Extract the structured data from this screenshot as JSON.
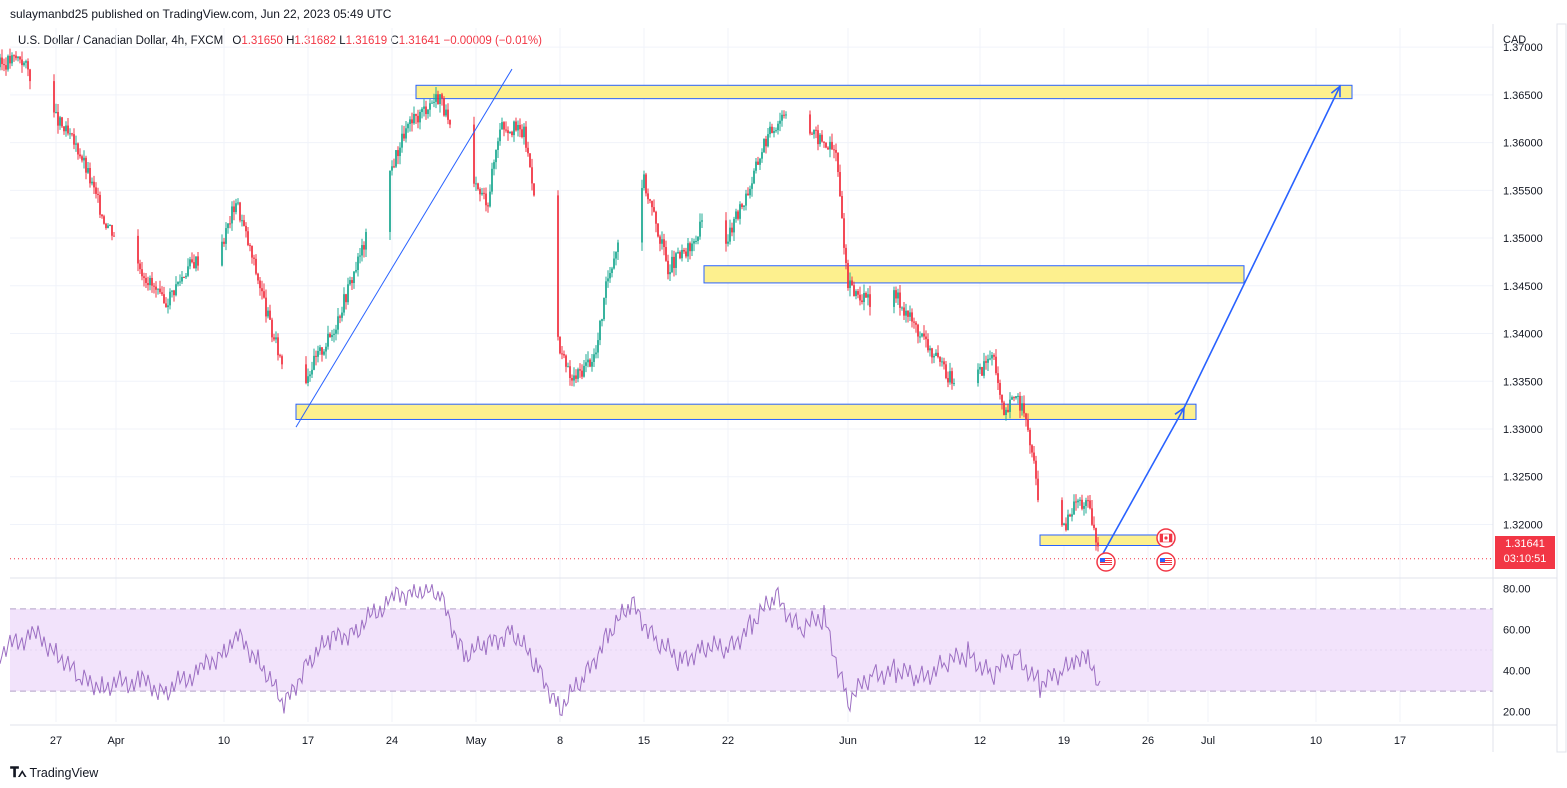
{
  "header": {
    "published": "sulaymanbd25 published on TradingView.com, Jun 22, 2023 05:49 UTC"
  },
  "legend": {
    "symbol": "U.S. Dollar / Canadian Dollar, 4h, FXCM",
    "o_label": "O",
    "o": "1.31650",
    "h_label": "H",
    "h": "1.31682",
    "l_label": "L",
    "l": "1.31619",
    "c_label": "C",
    "c": "1.31641",
    "change": "−0.00009 (−0.01%)"
  },
  "price_axis": {
    "currency": "CAD",
    "labels": [
      "1.37000",
      "1.36500",
      "1.36000",
      "1.35500",
      "1.35000",
      "1.34500",
      "1.34000",
      "1.33500",
      "1.33000",
      "1.32500",
      "1.32000"
    ],
    "current_price": "1.31641",
    "countdown": "03:10:51"
  },
  "rsi_axis": {
    "labels": [
      "80.00",
      "60.00",
      "40.00",
      "20.00"
    ]
  },
  "time_axis": {
    "labels": [
      "27",
      "Apr",
      "10",
      "17",
      "24",
      "May",
      "8",
      "15",
      "22",
      "Jun",
      "12",
      "19",
      "26",
      "Jul",
      "10",
      "17"
    ]
  },
  "brand": {
    "name": "TradingView"
  },
  "colors": {
    "up": "#22ab94",
    "down": "#f23645",
    "zone_fill": "#fdf08e",
    "zone_stroke": "#2962ff",
    "arrow": "#2962ff",
    "rsi": "#9c6ec2",
    "rsi_band": "#f2e3fb"
  },
  "chart_data": {
    "type": "candlestick",
    "instrument": "U.S. Dollar / Canadian Dollar",
    "timeframe": "4h",
    "ylim": [
      1.3145,
      1.372
    ],
    "close_path": [
      [
        "Mar 22",
        1.368
      ],
      [
        "Mar 24",
        1.369
      ],
      [
        "Mar 27",
        1.3625
      ],
      [
        "Mar 29",
        1.359
      ],
      [
        "Mar 31",
        1.352
      ],
      [
        "Apr 3",
        1.347
      ],
      [
        "Apr 5",
        1.343
      ],
      [
        "Apr 7",
        1.347
      ],
      [
        "Apr 10",
        1.35
      ],
      [
        "Apr 11",
        1.354
      ],
      [
        "Apr 13",
        1.345
      ],
      [
        "Apr 14",
        1.34
      ],
      [
        "Apr 16",
        1.333
      ],
      [
        "Apr 17",
        1.336
      ],
      [
        "Apr 19",
        1.34
      ],
      [
        "Apr 21",
        1.347
      ],
      [
        "Apr 23",
        1.354
      ],
      [
        "Apr 25",
        1.361
      ],
      [
        "Apr 27",
        1.364
      ],
      [
        "Apr 28",
        1.365
      ],
      [
        "Apr 30",
        1.356
      ],
      [
        "May 2",
        1.354
      ],
      [
        "May 3",
        1.362
      ],
      [
        "May 5",
        1.361
      ],
      [
        "May 6",
        1.354
      ],
      [
        "May 8",
        1.338
      ],
      [
        "May 9",
        1.335
      ],
      [
        "May 11",
        1.338
      ],
      [
        "May 12",
        1.346
      ],
      [
        "May 14",
        1.355
      ],
      [
        "May 15",
        1.356
      ],
      [
        "May 17",
        1.347
      ],
      [
        "May 19",
        1.349
      ],
      [
        "May 20",
        1.352
      ],
      [
        "May 22",
        1.35
      ],
      [
        "May 24",
        1.356
      ],
      [
        "May 25",
        1.36
      ],
      [
        "May 27",
        1.364
      ],
      [
        "May 29",
        1.361
      ],
      [
        "May 31",
        1.359
      ],
      [
        "Jun 1",
        1.345
      ],
      [
        "Jun 3",
        1.343
      ],
      [
        "Jun 5",
        1.344
      ],
      [
        "Jun 7",
        1.34
      ],
      [
        "Jun 9",
        1.336
      ],
      [
        "Jun 10",
        1.335
      ],
      [
        "Jun 12",
        1.336
      ],
      [
        "Jun 13",
        1.338
      ],
      [
        "Jun 14",
        1.331
      ],
      [
        "Jun 15",
        1.334
      ],
      [
        "Jun 16",
        1.33
      ],
      [
        "Jun 17",
        1.322
      ],
      [
        "Jun 19",
        1.3195
      ],
      [
        "Jun 20",
        1.3225
      ],
      [
        "Jun 21",
        1.322
      ],
      [
        "Jun 22",
        1.3164
      ]
    ],
    "last_bar": {
      "open": 1.3165,
      "high": 1.31682,
      "low": 1.31619,
      "close": 1.31641
    },
    "zones": [
      {
        "from": "Apr 26",
        "to": "Jul 13",
        "low": 1.3646,
        "high": 1.366
      },
      {
        "from": "May 20",
        "to": "Jul 4",
        "low": 1.3453,
        "high": 1.3471
      },
      {
        "from": "Apr 16",
        "to": "Jun 30",
        "low": 1.331,
        "high": 1.3326
      },
      {
        "from": "Jun 17",
        "to": "Jun 28",
        "low": 1.3178,
        "high": 1.3189
      }
    ],
    "trendline": {
      "from": [
        "Apr 16",
        1.3302
      ],
      "to": [
        "May 4",
        1.3677
      ]
    },
    "projection_arrows": [
      {
        "from": [
          "Jun 22",
          1.3164
        ],
        "to": [
          "Jun 29",
          1.3322
        ]
      },
      {
        "from": [
          "Jun 29",
          1.3322
        ],
        "to": [
          "Jul 12",
          1.3659
        ]
      }
    ],
    "rsi": {
      "upper_band": 70,
      "lower_band": 30,
      "ylim": [
        15,
        85
      ],
      "values": [
        [
          "Mar 22",
          48
        ],
        [
          "Mar 25",
          58
        ],
        [
          "Mar 27",
          50
        ],
        [
          "Mar 29",
          35
        ],
        [
          "Mar 31",
          33
        ],
        [
          "Apr 3",
          35
        ],
        [
          "Apr 5",
          30
        ],
        [
          "Apr 8",
          40
        ],
        [
          "Apr 10",
          50
        ],
        [
          "Apr 11",
          57
        ],
        [
          "Apr 13",
          45
        ],
        [
          "Apr 15",
          22
        ],
        [
          "Apr 17",
          45
        ],
        [
          "Apr 19",
          55
        ],
        [
          "Apr 21",
          60
        ],
        [
          "Apr 24",
          75
        ],
        [
          "Apr 26",
          80
        ],
        [
          "Apr 28",
          76
        ],
        [
          "Apr 30",
          48
        ],
        [
          "May 2",
          52
        ],
        [
          "May 4",
          60
        ],
        [
          "May 6",
          42
        ],
        [
          "May 8",
          22
        ],
        [
          "May 10",
          36
        ],
        [
          "May 12",
          58
        ],
        [
          "May 14",
          72
        ],
        [
          "May 16",
          55
        ],
        [
          "May 18",
          44
        ],
        [
          "May 20",
          52
        ],
        [
          "May 22",
          50
        ],
        [
          "May 24",
          63
        ],
        [
          "May 26",
          76
        ],
        [
          "May 28",
          60
        ],
        [
          "May 30",
          66
        ],
        [
          "Jun 1",
          25
        ],
        [
          "Jun 3",
          38
        ],
        [
          "Jun 5",
          40
        ],
        [
          "Jun 7",
          36
        ],
        [
          "Jun 9",
          43
        ],
        [
          "Jun 11",
          48
        ],
        [
          "Jun 13",
          38
        ],
        [
          "Jun 15",
          48
        ],
        [
          "Jun 17",
          33
        ],
        [
          "Jun 19",
          40
        ],
        [
          "Jun 20",
          47
        ],
        [
          "Jun 21",
          44
        ],
        [
          "Jun 22",
          35
        ]
      ]
    },
    "events": [
      {
        "date": "Jun 22",
        "flag": "US"
      },
      {
        "date": "Jun 27",
        "flag": "CA"
      },
      {
        "date": "Jun 27",
        "flag": "US"
      }
    ]
  }
}
